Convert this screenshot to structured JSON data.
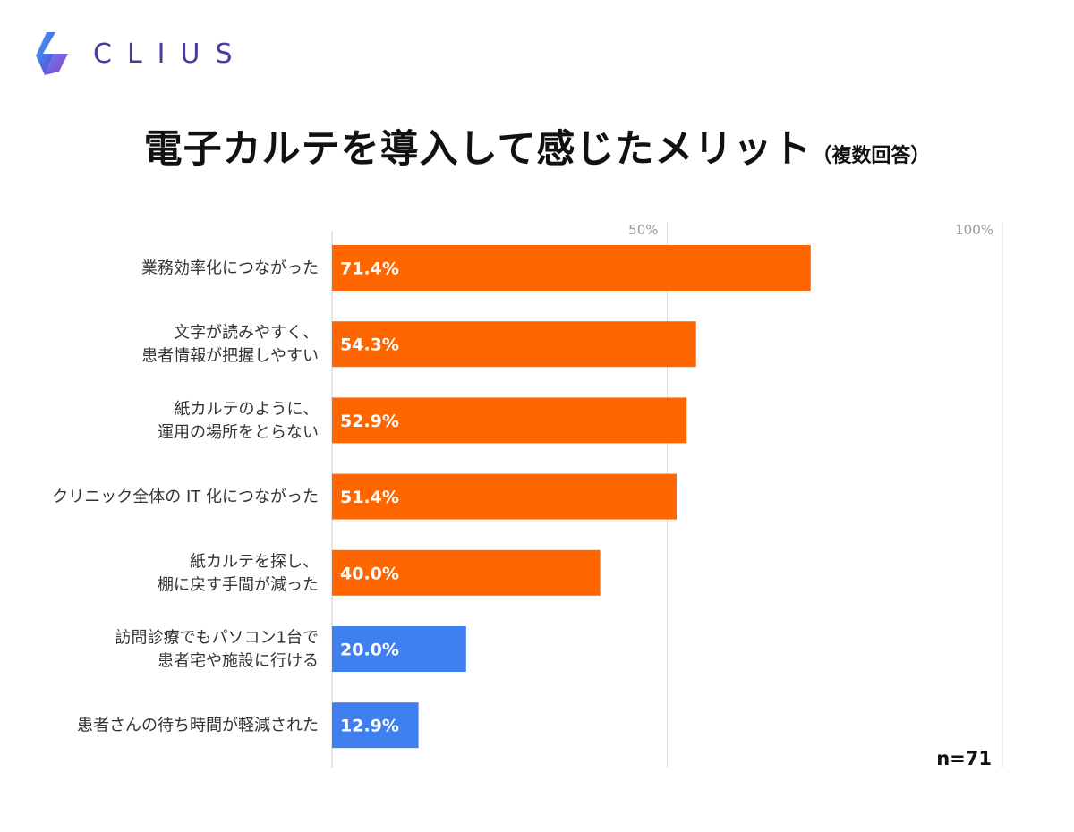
{
  "brand": {
    "name": "CLIUS",
    "colors": {
      "logo_top": "#3a8ef0",
      "logo_bottom": "#6a2fc0"
    }
  },
  "header": {
    "title": "電子カルテを導入して感じたメリット",
    "title_suffix": "（複数回答）"
  },
  "footer": {
    "n_label": "n=71"
  },
  "chart_data": {
    "type": "bar",
    "orientation": "horizontal",
    "title": "電子カルテを導入して感じたメリット（複数回答）",
    "categories": [
      [
        "業務効率化につながった"
      ],
      [
        "文字が読みやすく、",
        "患者情報が把握しやすい"
      ],
      [
        "紙カルテのように、",
        "運用の場所をとらない"
      ],
      [
        "クリニック全体の IT 化につながった"
      ],
      [
        "紙カルテを探し、",
        "棚に戻す手間が減った"
      ],
      [
        "訪問診療でもパソコン1台で",
        "患者宅や施設に行ける"
      ],
      [
        "患者さんの待ち時間が軽減された"
      ]
    ],
    "values": [
      71.4,
      54.3,
      52.9,
      51.4,
      40.0,
      20.0,
      12.9
    ],
    "value_labels": [
      "71.4%",
      "54.3%",
      "52.9%",
      "51.4%",
      "40.0%",
      "20.0%",
      "12.9%"
    ],
    "bar_colors": [
      "#ff6600",
      "#ff6600",
      "#ff6600",
      "#ff6600",
      "#ff6600",
      "#3f7ff0",
      "#3f7ff0"
    ],
    "xlim": [
      0,
      100
    ],
    "ticks": [
      50,
      100
    ],
    "tick_labels": [
      "50%",
      "100%"
    ],
    "grid": true,
    "sample_size": 71
  }
}
